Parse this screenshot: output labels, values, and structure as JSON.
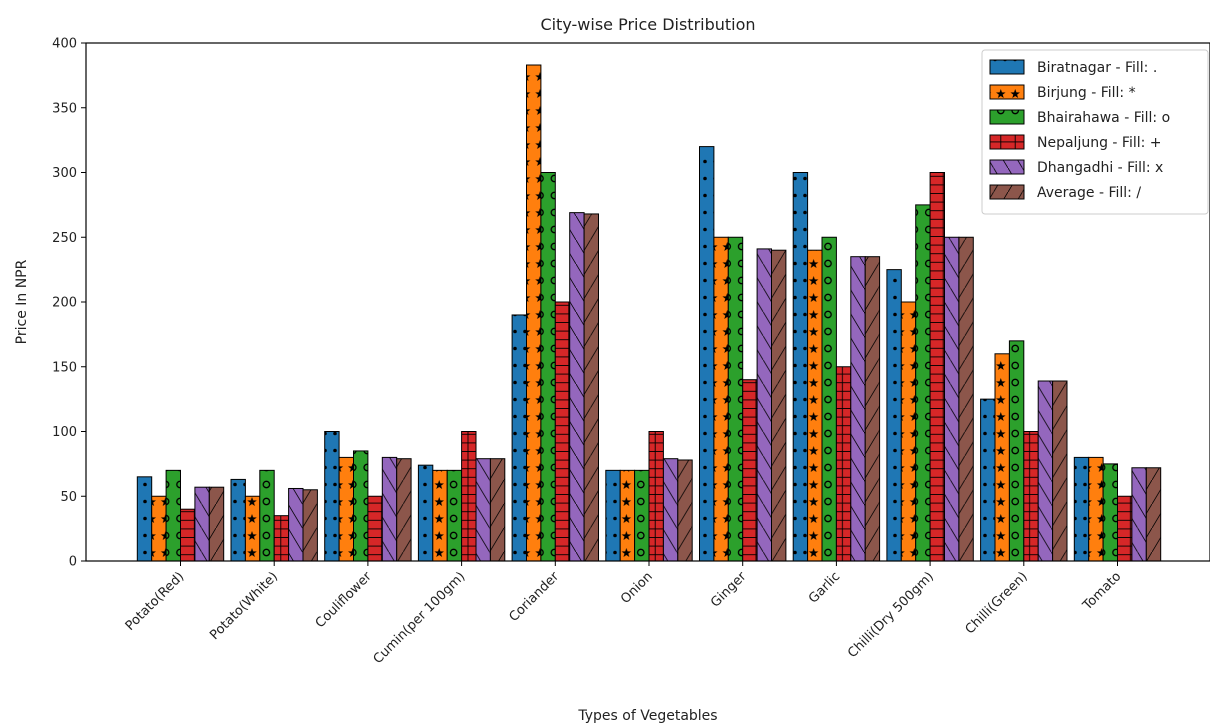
{
  "chart_data": {
    "type": "bar",
    "title": "City-wise Price Distribution",
    "xlabel": "Types of Vegetables",
    "ylabel": "Price In NPR",
    "ylim": [
      0,
      400
    ],
    "yticks": [
      0,
      50,
      100,
      150,
      200,
      250,
      300,
      350,
      400
    ],
    "grid": false,
    "legend_position": "top-right",
    "categories": [
      "Potato(Red)",
      "Potato(White)",
      "Couliflower",
      "Cumin(per 100gm)",
      "Coriander",
      "Onion",
      "Ginger",
      "Garlic",
      "Chilli(Dry 500gm)",
      "Chilli(Green)",
      "Tomato"
    ],
    "series": [
      {
        "name": "Biratnagar - Fill: .",
        "color": "#1f77b4",
        "hatch": "dot",
        "values": [
          65,
          63,
          100,
          74,
          190,
          70,
          320,
          300,
          225,
          125,
          80
        ]
      },
      {
        "name": "Birjung - Fill: *",
        "color": "#ff7f0e",
        "hatch": "star",
        "values": [
          50,
          50,
          80,
          70,
          383,
          70,
          250,
          240,
          200,
          160,
          80
        ]
      },
      {
        "name": "Bhairahawa - Fill: o",
        "color": "#2ca02c",
        "hatch": "circle",
        "values": [
          70,
          70,
          85,
          70,
          300,
          70,
          250,
          250,
          275,
          170,
          75
        ]
      },
      {
        "name": "Nepaljung - Fill: +",
        "color": "#d62728",
        "hatch": "plus",
        "values": [
          40,
          35,
          50,
          100,
          200,
          100,
          140,
          150,
          300,
          100,
          50
        ]
      },
      {
        "name": "Dhangadhi - Fill: x",
        "color": "#9467bd",
        "hatch": "backslash",
        "values": [
          57,
          56,
          80,
          79,
          269,
          79,
          241,
          235,
          250,
          139,
          72
        ]
      },
      {
        "name": "Average - Fill: /",
        "color": "#8c564b",
        "hatch": "slash",
        "values": [
          57,
          55,
          79,
          79,
          268,
          78,
          240,
          235,
          250,
          139,
          72
        ]
      }
    ]
  }
}
